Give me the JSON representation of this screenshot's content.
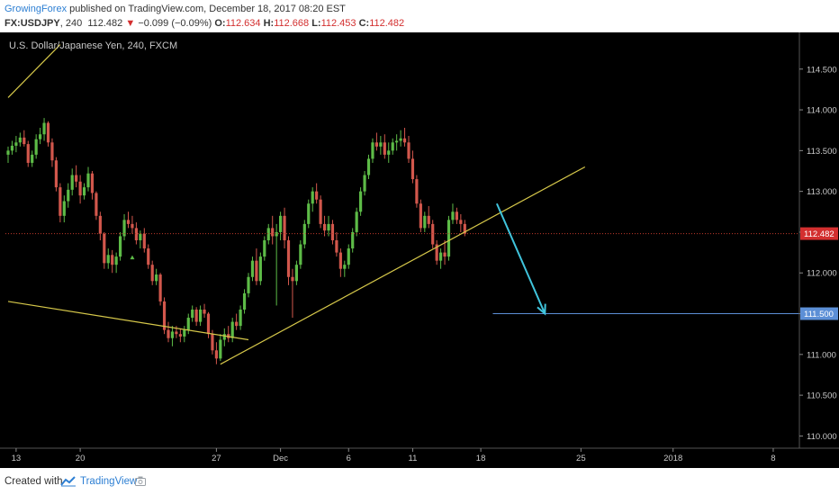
{
  "header": {
    "author": "GrowingForex",
    "published": " published on TradingView.com, December 18, 2017 08:20 EST",
    "symbol": "FX:USDJPY",
    "interval": ", 240",
    "last": "112.482",
    "down_arrow": "▼",
    "change": "−0.099 (−0.09%)",
    "o_label": "O:",
    "o_value": "112.634",
    "h_label": "H:",
    "h_value": "112.668",
    "l_label": "L:",
    "l_value": "112.453",
    "c_label": "C:",
    "c_value": "112.482"
  },
  "footer": {
    "created_with": "Created with",
    "brand": "TradingView",
    "logo_icon": "tradingview-logo-icon",
    "camera_icon": "camera-icon"
  },
  "colors": {
    "background": "#000000",
    "up": "#5dbb47",
    "down": "#d2574c",
    "trendline": "#d6c84a",
    "arrow": "#40c4dc",
    "target_line": "#5c8fd6",
    "price_tag": "#d32f2f",
    "target_tag": "#5c8fd6"
  },
  "chart_data": {
    "type": "candlestick",
    "title": "U.S. Dollar/Japanese Yen, 240, FXCM",
    "x_tick_labels": [
      "13",
      "20",
      "27",
      "Dec",
      "6",
      "11",
      "18",
      "25",
      "2018",
      "8"
    ],
    "y_tick_labels": [
      "114.500",
      "114.000",
      "113.500",
      "113.000",
      "112.500",
      "112.000",
      "111.500",
      "111.000",
      "110.500",
      "110.000"
    ],
    "ylim": [
      109.85,
      114.95
    ],
    "last_price": 112.482,
    "last_price_label": "112.482",
    "target_price": 111.5,
    "target_label": "111.500",
    "bars": [
      [
        113.45,
        113.55,
        113.35,
        113.5
      ],
      [
        113.5,
        113.62,
        113.45,
        113.56
      ],
      [
        113.56,
        113.68,
        113.48,
        113.6
      ],
      [
        113.6,
        113.72,
        113.55,
        113.66
      ],
      [
        113.66,
        113.75,
        113.55,
        113.58
      ],
      [
        113.58,
        113.62,
        113.3,
        113.35
      ],
      [
        113.35,
        113.5,
        113.3,
        113.45
      ],
      [
        113.45,
        113.7,
        113.4,
        113.64
      ],
      [
        113.64,
        113.78,
        113.58,
        113.7
      ],
      [
        113.7,
        113.9,
        113.62,
        113.84
      ],
      [
        113.84,
        113.86,
        113.55,
        113.6
      ],
      [
        113.6,
        113.65,
        113.3,
        113.38
      ],
      [
        113.38,
        113.42,
        113.0,
        113.05
      ],
      [
        113.05,
        113.1,
        112.62,
        112.7
      ],
      [
        112.7,
        112.95,
        112.62,
        112.88
      ],
      [
        112.88,
        113.1,
        112.8,
        113.02
      ],
      [
        113.02,
        113.28,
        112.95,
        113.2
      ],
      [
        113.2,
        113.32,
        113.05,
        113.12
      ],
      [
        113.12,
        113.2,
        112.85,
        112.95
      ],
      [
        112.95,
        113.1,
        112.9,
        113.05
      ],
      [
        113.05,
        113.3,
        113.0,
        113.22
      ],
      [
        113.22,
        113.25,
        112.9,
        112.98
      ],
      [
        112.98,
        113.0,
        112.65,
        112.7
      ],
      [
        112.7,
        112.75,
        112.4,
        112.48
      ],
      [
        112.48,
        112.5,
        112.05,
        112.12
      ],
      [
        112.12,
        112.3,
        112.05,
        112.22
      ],
      [
        112.22,
        112.28,
        112.0,
        112.1
      ],
      [
        112.1,
        112.25,
        112.0,
        112.2
      ],
      [
        112.2,
        112.5,
        112.15,
        112.45
      ],
      [
        112.45,
        112.72,
        112.4,
        112.65
      ],
      [
        112.65,
        112.75,
        112.55,
        112.6
      ],
      [
        112.6,
        112.7,
        112.48,
        112.55
      ],
      [
        112.55,
        112.62,
        112.35,
        112.4
      ],
      [
        112.4,
        112.52,
        112.3,
        112.48
      ],
      [
        112.48,
        112.55,
        112.25,
        112.3
      ],
      [
        112.3,
        112.35,
        112.05,
        112.1
      ],
      [
        112.1,
        112.15,
        111.85,
        111.9
      ],
      [
        111.9,
        112.05,
        111.85,
        111.98
      ],
      [
        111.98,
        112.0,
        111.6,
        111.65
      ],
      [
        111.65,
        111.7,
        111.25,
        111.3
      ],
      [
        111.3,
        111.4,
        111.15,
        111.2
      ],
      [
        111.2,
        111.35,
        111.1,
        111.28
      ],
      [
        111.28,
        111.35,
        111.2,
        111.25
      ],
      [
        111.25,
        111.32,
        111.15,
        111.22
      ],
      [
        111.22,
        111.35,
        111.15,
        111.3
      ],
      [
        111.3,
        111.5,
        111.25,
        111.45
      ],
      [
        111.45,
        111.6,
        111.4,
        111.55
      ],
      [
        111.55,
        111.58,
        111.35,
        111.4
      ],
      [
        111.4,
        111.6,
        111.35,
        111.55
      ],
      [
        111.55,
        111.62,
        111.45,
        111.5
      ],
      [
        111.5,
        111.52,
        111.2,
        111.25
      ],
      [
        111.25,
        111.3,
        111.0,
        111.05
      ],
      [
        111.05,
        111.15,
        110.88,
        110.95
      ],
      [
        110.95,
        111.25,
        110.92,
        111.18
      ],
      [
        111.18,
        111.32,
        111.1,
        111.25
      ],
      [
        111.25,
        111.35,
        111.15,
        111.2
      ],
      [
        111.2,
        111.45,
        111.15,
        111.4
      ],
      [
        111.4,
        111.5,
        111.3,
        111.35
      ],
      [
        111.35,
        111.6,
        111.3,
        111.55
      ],
      [
        111.55,
        111.8,
        111.5,
        111.75
      ],
      [
        111.75,
        112.0,
        111.7,
        111.95
      ],
      [
        111.95,
        112.2,
        111.9,
        112.15
      ],
      [
        112.15,
        112.3,
        111.85,
        111.9
      ],
      [
        111.9,
        112.25,
        111.85,
        112.2
      ],
      [
        112.2,
        112.45,
        112.15,
        112.4
      ],
      [
        112.4,
        112.6,
        112.35,
        112.55
      ],
      [
        112.55,
        112.7,
        112.35,
        112.45
      ],
      [
        112.45,
        112.6,
        111.6,
        112.5
      ],
      [
        112.5,
        112.75,
        112.4,
        112.7
      ],
      [
        112.7,
        112.8,
        112.3,
        112.4
      ],
      [
        112.4,
        112.45,
        111.85,
        111.95
      ],
      [
        111.95,
        112.05,
        111.45,
        111.9
      ],
      [
        111.9,
        112.15,
        111.85,
        112.1
      ],
      [
        112.1,
        112.4,
        112.05,
        112.35
      ],
      [
        112.35,
        112.65,
        112.3,
        112.6
      ],
      [
        112.6,
        112.9,
        112.55,
        112.85
      ],
      [
        112.85,
        113.05,
        112.75,
        113.0
      ],
      [
        113.0,
        113.1,
        112.85,
        112.9
      ],
      [
        112.9,
        112.95,
        112.55,
        112.6
      ],
      [
        112.6,
        112.7,
        112.45,
        112.52
      ],
      [
        112.52,
        112.7,
        112.45,
        112.6
      ],
      [
        112.6,
        112.65,
        112.35,
        112.4
      ],
      [
        112.4,
        112.5,
        112.2,
        112.25
      ],
      [
        112.25,
        112.3,
        111.95,
        112.05
      ],
      [
        112.05,
        112.15,
        111.95,
        112.1
      ],
      [
        112.1,
        112.35,
        112.05,
        112.3
      ],
      [
        112.3,
        112.55,
        112.25,
        112.5
      ],
      [
        112.5,
        112.8,
        112.45,
        112.75
      ],
      [
        112.75,
        113.05,
        112.7,
        113.0
      ],
      [
        113.0,
        113.25,
        112.95,
        113.2
      ],
      [
        113.2,
        113.45,
        113.15,
        113.4
      ],
      [
        113.4,
        113.65,
        113.35,
        113.6
      ],
      [
        113.6,
        113.72,
        113.5,
        113.55
      ],
      [
        113.55,
        113.68,
        113.45,
        113.6
      ],
      [
        113.6,
        113.7,
        113.4,
        113.45
      ],
      [
        113.45,
        113.6,
        113.35,
        113.5
      ],
      [
        113.5,
        113.65,
        113.45,
        113.6
      ],
      [
        113.6,
        113.7,
        113.5,
        113.62
      ],
      [
        113.62,
        113.75,
        113.55,
        113.65
      ],
      [
        113.65,
        113.78,
        113.55,
        113.6
      ],
      [
        113.6,
        113.68,
        113.35,
        113.4
      ],
      [
        113.4,
        113.5,
        113.1,
        113.15
      ],
      [
        113.15,
        113.2,
        112.8,
        112.85
      ],
      [
        112.85,
        112.9,
        112.5,
        112.55
      ],
      [
        112.55,
        112.75,
        112.5,
        112.7
      ],
      [
        112.7,
        112.82,
        112.55,
        112.6
      ],
      [
        112.6,
        112.65,
        112.3,
        112.35
      ],
      [
        112.35,
        112.4,
        112.1,
        112.15
      ],
      [
        112.15,
        112.3,
        112.05,
        112.25
      ],
      [
        112.25,
        112.4,
        112.1,
        112.2
      ],
      [
        112.2,
        112.7,
        112.15,
        112.65
      ],
      [
        112.65,
        112.85,
        112.6,
        112.75
      ],
      [
        112.75,
        112.8,
        112.6,
        112.65
      ],
      [
        112.65,
        112.72,
        112.5,
        112.6
      ],
      [
        112.6,
        112.65,
        112.45,
        112.48
      ]
    ],
    "bar_date_labels": [
      "13",
      "20",
      "27",
      "Dec",
      "6",
      "11",
      "18"
    ],
    "bar_date_indices": [
      2,
      18,
      52,
      68,
      85,
      101,
      118
    ],
    "future_labels": [
      "25",
      "2018",
      "8"
    ],
    "future_bars_from_18": [
      25,
      48,
      73
    ],
    "drawings": {
      "resistance_trendline": {
        "from": {
          "bar": 0,
          "price": 114.15
        },
        "to": {
          "bar": 13,
          "price": 114.8
        }
      },
      "lower_trendline": {
        "from": {
          "bar": 0,
          "price": 111.65
        },
        "to": {
          "bar": 60,
          "price": 111.18
        }
      },
      "support_trendline": {
        "from": {
          "bar": 53,
          "price": 110.88
        },
        "to": {
          "bar": 144,
          "price": 113.3
        }
      },
      "forecast_arrow": {
        "from": {
          "bar": 122,
          "price": 112.85
        },
        "to": {
          "bar": 134,
          "price": 111.5
        }
      },
      "target_line": {
        "from_bar": 121,
        "to_bar": 199,
        "price": 111.5
      }
    }
  }
}
